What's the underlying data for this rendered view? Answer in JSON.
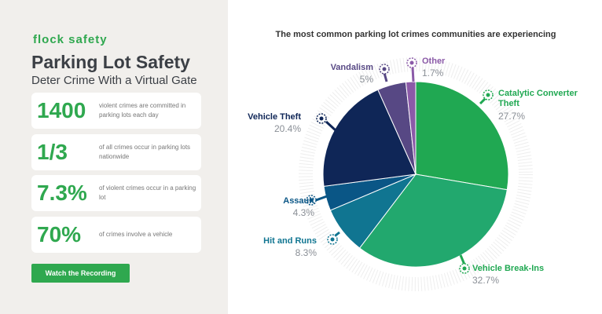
{
  "brand": "flock safety",
  "header": {
    "title": "Parking Lot Safety",
    "subtitle": "Deter Crime With a Virtual Gate"
  },
  "stats": [
    {
      "value": "1400",
      "text": "violent crimes are committed in parking lots each day"
    },
    {
      "value": "1/3",
      "text": "of all crimes occur in parking lots nationwide"
    },
    {
      "value": "7.3%",
      "text": "of violent crimes occur in a parking lot"
    },
    {
      "value": "70%",
      "text": "of crimes involve a vehicle"
    }
  ],
  "button": "Watch the Recording",
  "chart_data": {
    "type": "pie",
    "title": "The most common parking lot crimes communities are experiencing",
    "categories": [
      "Catalytic Converter Theft",
      "Vehicle Break-Ins",
      "Hit and Runs",
      "Assault",
      "Vehicle Theft",
      "Vandalism",
      "Other"
    ],
    "values": [
      27.7,
      32.7,
      8.3,
      4.3,
      20.4,
      5,
      1.7
    ],
    "value_labels": [
      "27.7%",
      "32.7%",
      "8.3%",
      "4.3%",
      "20.4%",
      "5%",
      "1.7%"
    ],
    "colors": [
      "#20a852",
      "#22a86e",
      "#107591",
      "#0a5686",
      "#0f2657",
      "#574884",
      "#8b5aa8"
    ]
  }
}
